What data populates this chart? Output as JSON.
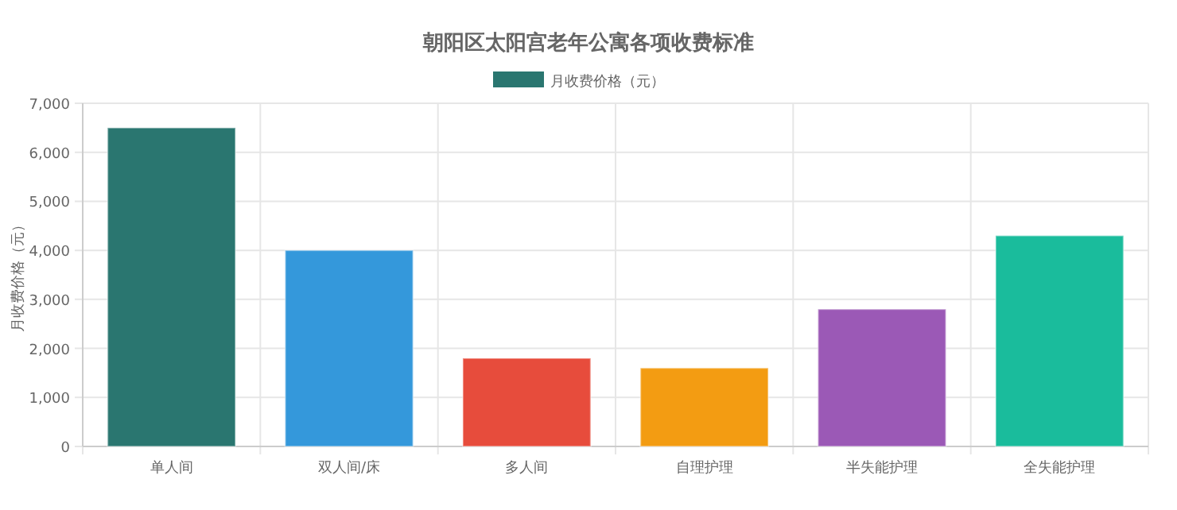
{
  "chart_data": {
    "type": "bar",
    "title": "朝阳区太阳宫老年公寓各项收费标准",
    "ylabel": "月收费价格（元）",
    "categories": [
      "单人间",
      "双人间/床",
      "多人间",
      "自理护理",
      "半失能护理",
      "全失能护理"
    ],
    "series": [
      {
        "name": "月收费价格（元）",
        "color": "#2a7670",
        "colors": [
          "#2a7670",
          "#3498db",
          "#e74c3c",
          "#f39c12",
          "#9b59b6",
          "#1abc9c"
        ],
        "values": [
          6500,
          4000,
          1800,
          1600,
          2800,
          4300
        ]
      }
    ],
    "ylim": [
      0,
      7000
    ],
    "yticks": [
      {
        "value": 0,
        "label": "0"
      },
      {
        "value": 1000,
        "label": "1,000"
      },
      {
        "value": 2000,
        "label": "2,000"
      },
      {
        "value": 3000,
        "label": "3,000"
      },
      {
        "value": 4000,
        "label": "4,000"
      },
      {
        "value": 5000,
        "label": "5,000"
      },
      {
        "value": 6000,
        "label": "6,000"
      },
      {
        "value": 7000,
        "label": "7,000"
      }
    ],
    "grid": true,
    "legend": "top"
  }
}
